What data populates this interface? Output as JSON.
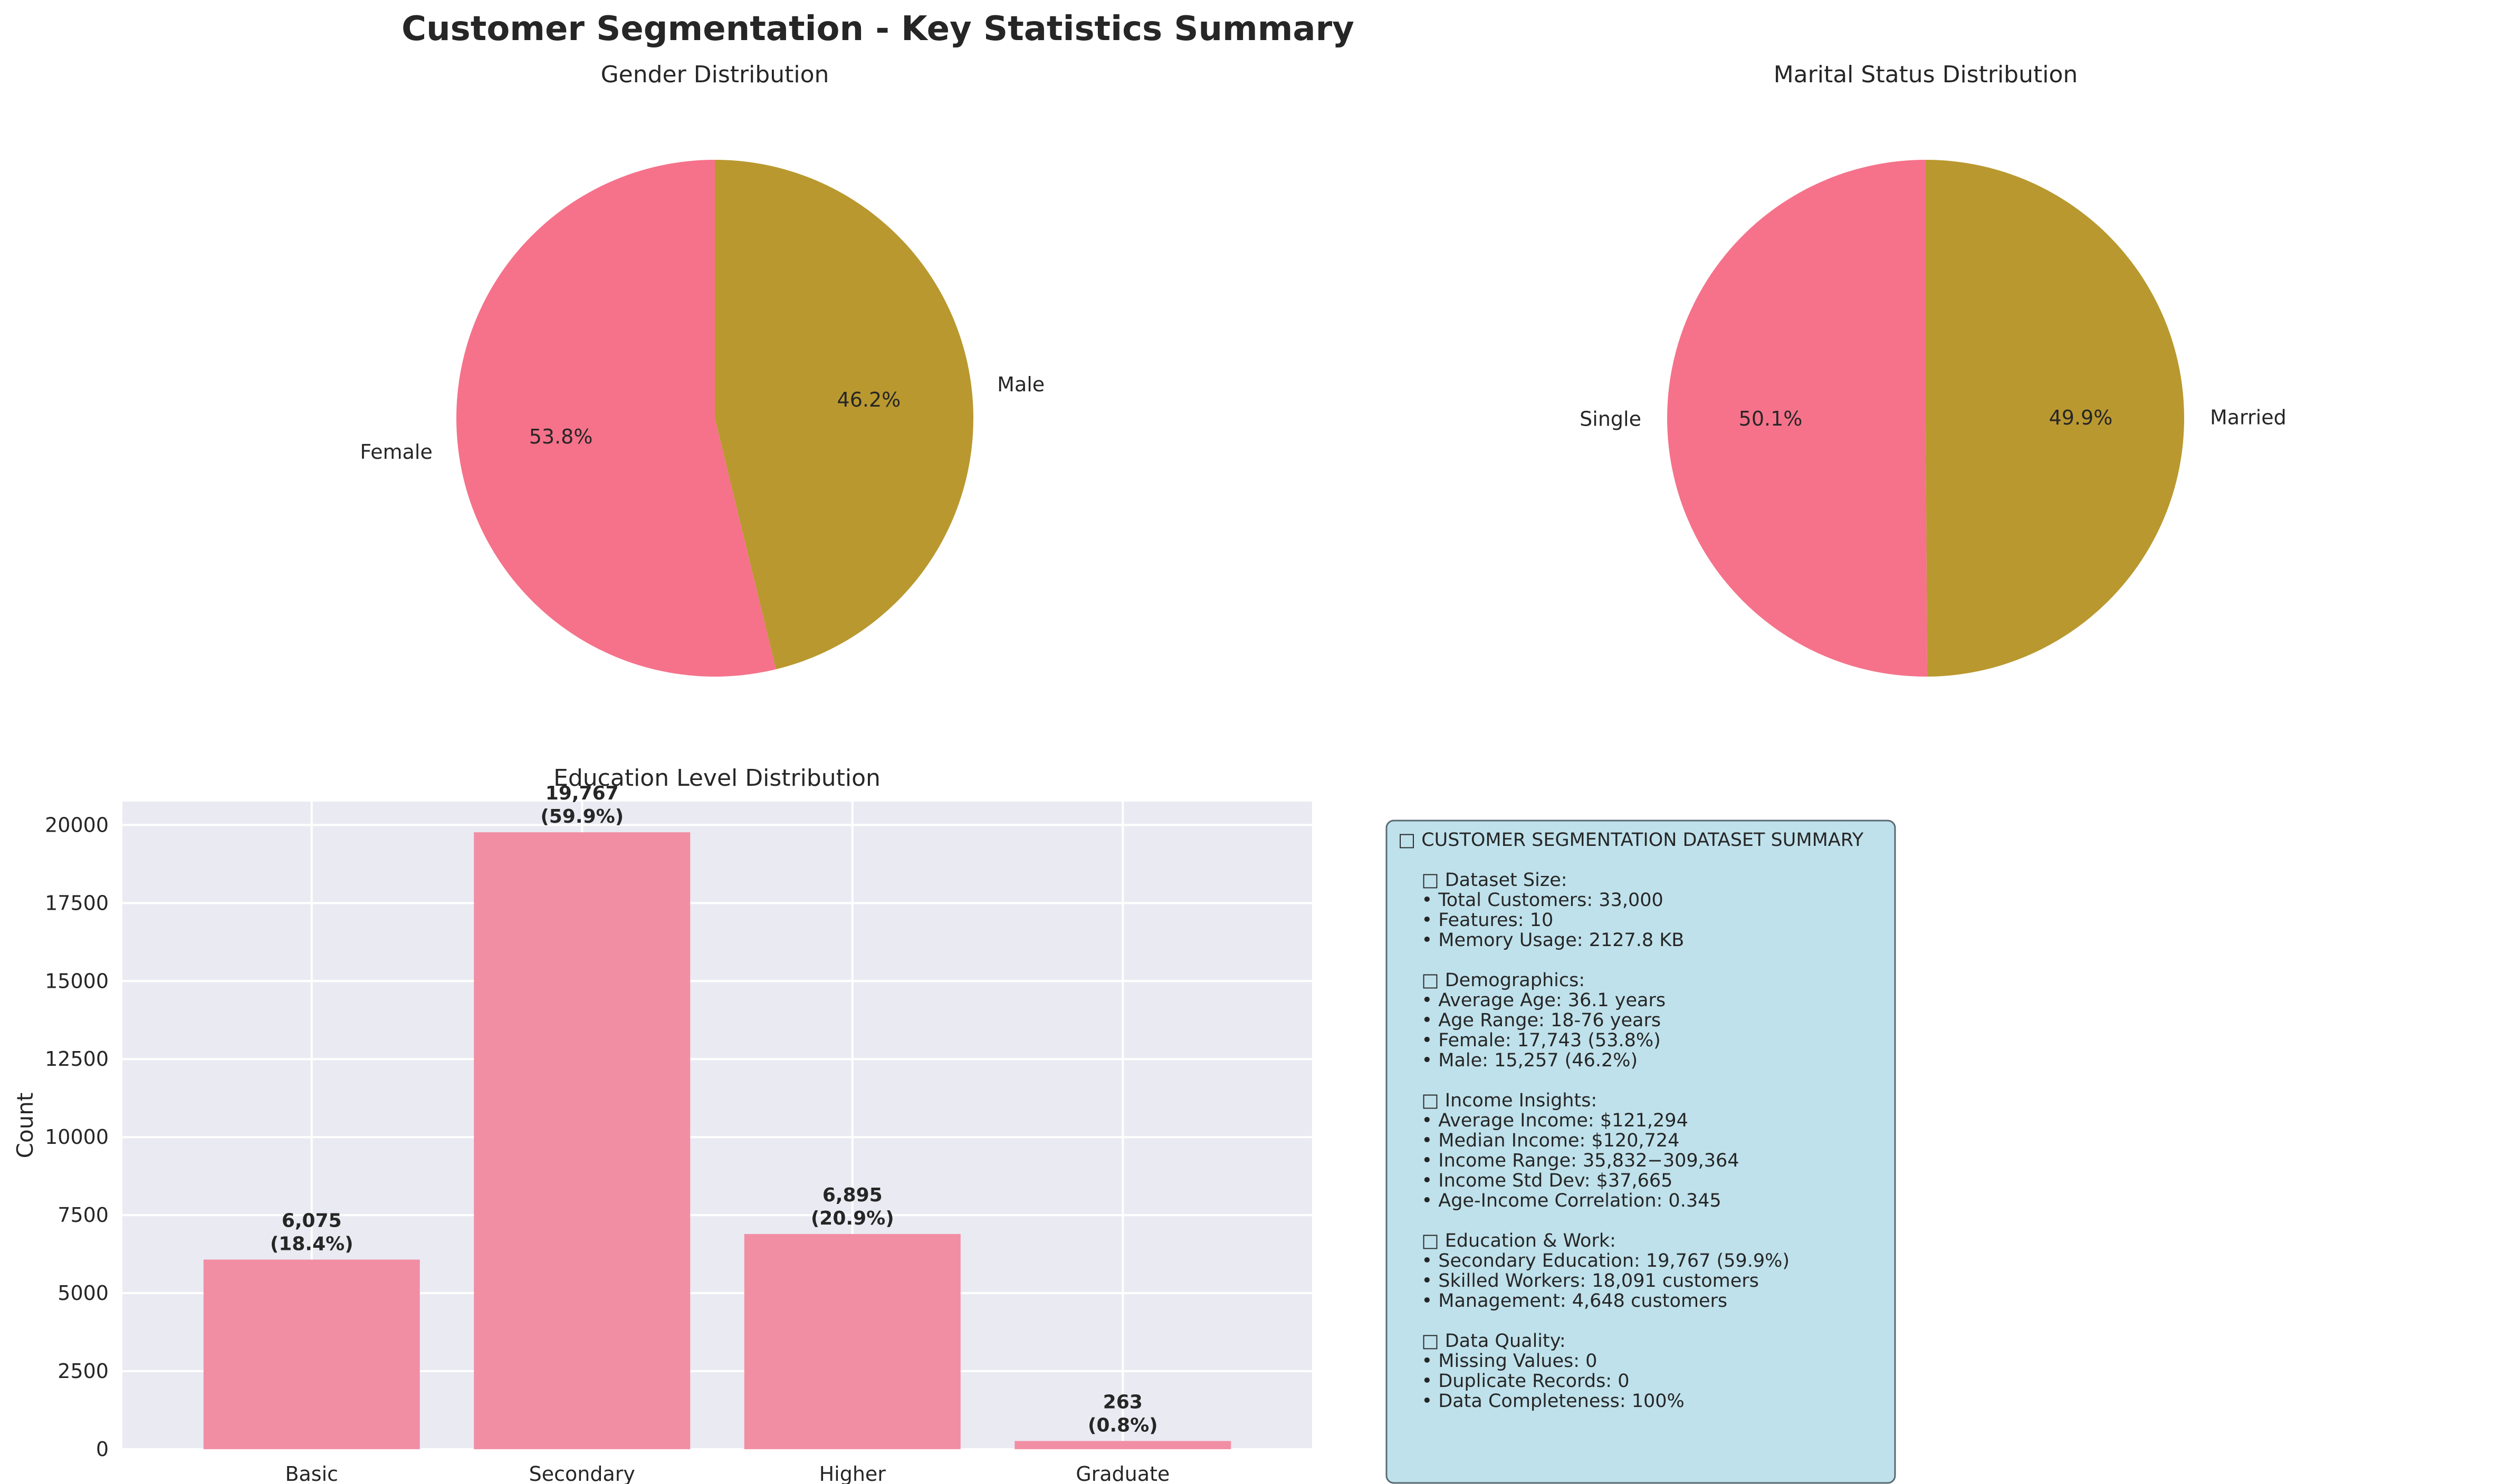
{
  "suptitle": "Customer Segmentation - Key Statistics Summary",
  "chart_data": [
    {
      "type": "pie",
      "title": "Gender Distribution",
      "labels": [
        "Female",
        "Male"
      ],
      "values": [
        53.8,
        46.2
      ],
      "pct_labels": [
        "53.8%",
        "46.2%"
      ],
      "colors": [
        "#f5728a",
        "#b9982f"
      ]
    },
    {
      "type": "pie",
      "title": "Marital Status Distribution",
      "labels": [
        "Single",
        "Married"
      ],
      "values": [
        50.1,
        49.9
      ],
      "pct_labels": [
        "50.1%",
        "49.9%"
      ],
      "colors": [
        "#f5728a",
        "#b9982f"
      ]
    },
    {
      "type": "bar",
      "title": "Education Level Distribution",
      "categories": [
        "Basic",
        "Secondary",
        "Higher",
        "Graduate"
      ],
      "values": [
        6075,
        19767,
        6895,
        263
      ],
      "value_labels": [
        "6,075",
        "19,767",
        "6,895",
        "263"
      ],
      "pct_labels": [
        "(18.4%)",
        "(59.9%)",
        "(20.9%)",
        "(0.8%)"
      ],
      "ylabel": "Count",
      "ylim": [
        0,
        20750
      ],
      "yticks": [
        0,
        2500,
        5000,
        7500,
        10000,
        12500,
        15000,
        17500,
        20000
      ],
      "grid": true,
      "bar_color": "#f28ea4"
    }
  ],
  "summary": {
    "lines": [
      "□ CUSTOMER SEGMENTATION DATASET SUMMARY",
      "",
      "    □ Dataset Size:",
      "    • Total Customers: 33,000",
      "    • Features: 10",
      "    • Memory Usage: 2127.8 KB",
      "",
      "    □ Demographics:",
      "    • Average Age: 36.1 years",
      "    • Age Range: 18-76 years",
      "    • Female: 17,743 (53.8%)",
      "    • Male: 15,257 (46.2%)",
      "",
      "    □ Income Insights:",
      "    • Average Income: $121,294",
      "    • Median Income: $120,724",
      "    • Income Range: 35,832−309,364",
      "    • Income Std Dev: $37,665",
      "    • Age-Income Correlation: 0.345",
      "",
      "    □ Education & Work:",
      "    • Secondary Education: 19,767 (59.9%)",
      "    • Skilled Workers: 18,091 customers",
      "    • Management: 4,648 customers",
      "",
      "    □ Data Quality:",
      "    • Missing Values: 0",
      "    • Duplicate Records: 0",
      "    • Data Completeness: 100%"
    ],
    "box_color": "#add8e6"
  }
}
